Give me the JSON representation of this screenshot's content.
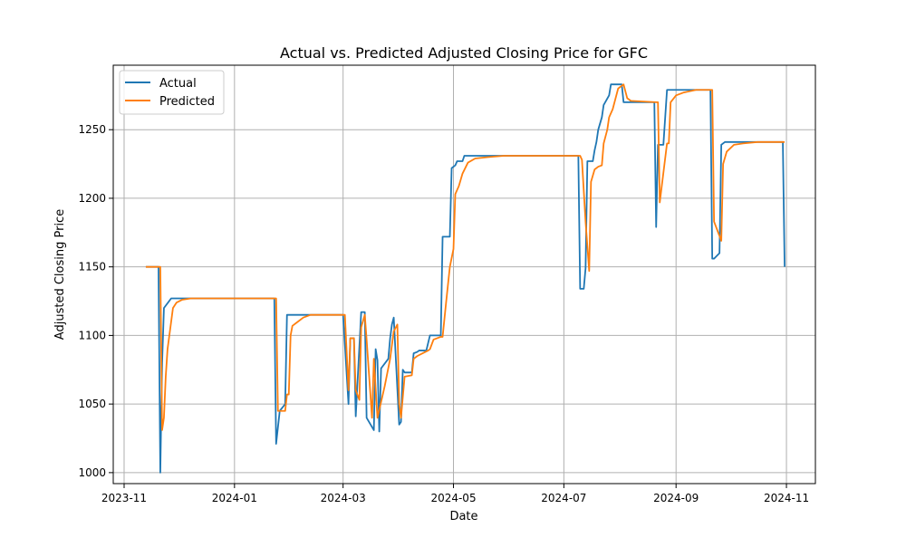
{
  "chart_data": {
    "type": "line",
    "title": "Actual vs. Predicted Adjusted Closing Price for GFC",
    "xlabel": "Date",
    "ylabel": "Adjusted Closing Price",
    "x_tick_labels": [
      "2023-11",
      "2024-01",
      "2024-03",
      "2024-05",
      "2024-07",
      "2024-09",
      "2024-11"
    ],
    "x_tick_dates": [
      "2023-11-01",
      "2024-01-01",
      "2024-03-01",
      "2024-05-01",
      "2024-07-01",
      "2024-09-01",
      "2024-11-01"
    ],
    "y_ticks": [
      1000,
      1050,
      1100,
      1150,
      1200,
      1250
    ],
    "y_tick_labels": [
      "1000",
      "1050",
      "1100",
      "1150",
      "1200",
      "1250"
    ],
    "xlim": [
      "2023-10-26",
      "2024-11-17"
    ],
    "ylim": [
      992,
      1297
    ],
    "grid": true,
    "legend_position": "top-left",
    "series": [
      {
        "name": "Actual",
        "color": "#1f77b4",
        "points": [
          [
            "2023-11-13",
            1150
          ],
          [
            "2023-11-19",
            1150
          ],
          [
            "2023-11-20",
            1150
          ],
          [
            "2023-11-21",
            1000
          ],
          [
            "2023-11-22",
            1080
          ],
          [
            "2023-11-23",
            1120
          ],
          [
            "2023-11-27",
            1127
          ],
          [
            "2024-01-23",
            1127
          ],
          [
            "2024-01-24",
            1021
          ],
          [
            "2024-01-26",
            1045
          ],
          [
            "2024-01-29",
            1050
          ],
          [
            "2024-01-30",
            1115
          ],
          [
            "2024-03-01",
            1115
          ],
          [
            "2024-03-04",
            1050
          ],
          [
            "2024-03-05",
            1098
          ],
          [
            "2024-03-07",
            1098
          ],
          [
            "2024-03-08",
            1041
          ],
          [
            "2024-03-11",
            1117
          ],
          [
            "2024-03-13",
            1117
          ],
          [
            "2024-03-14",
            1040
          ],
          [
            "2024-03-18",
            1031
          ],
          [
            "2024-03-19",
            1090
          ],
          [
            "2024-03-20",
            1082
          ],
          [
            "2024-03-21",
            1030
          ],
          [
            "2024-03-22",
            1076
          ],
          [
            "2024-03-26",
            1083
          ],
          [
            "2024-03-27",
            1098
          ],
          [
            "2024-03-28",
            1108
          ],
          [
            "2024-03-29",
            1113
          ],
          [
            "2024-04-01",
            1035
          ],
          [
            "2024-04-02",
            1037
          ],
          [
            "2024-04-03",
            1075
          ],
          [
            "2024-04-04",
            1073
          ],
          [
            "2024-04-08",
            1073
          ],
          [
            "2024-04-09",
            1087
          ],
          [
            "2024-04-11",
            1088
          ],
          [
            "2024-04-12",
            1089
          ],
          [
            "2024-04-16",
            1089
          ],
          [
            "2024-04-18",
            1100
          ],
          [
            "2024-04-24",
            1100
          ],
          [
            "2024-04-25",
            1172
          ],
          [
            "2024-04-29",
            1172
          ],
          [
            "2024-04-30",
            1222
          ],
          [
            "2024-05-02",
            1224
          ],
          [
            "2024-05-03",
            1227
          ],
          [
            "2024-05-06",
            1227
          ],
          [
            "2024-05-07",
            1231
          ],
          [
            "2024-07-09",
            1231
          ],
          [
            "2024-07-10",
            1134
          ],
          [
            "2024-07-12",
            1134
          ],
          [
            "2024-07-13",
            1149
          ],
          [
            "2024-07-14",
            1227
          ],
          [
            "2024-07-17",
            1227
          ],
          [
            "2024-07-18",
            1235
          ],
          [
            "2024-07-19",
            1241
          ],
          [
            "2024-07-20",
            1250
          ],
          [
            "2024-07-22",
            1259
          ],
          [
            "2024-07-23",
            1268
          ],
          [
            "2024-07-26",
            1275
          ],
          [
            "2024-07-27",
            1283
          ],
          [
            "2024-07-31",
            1283
          ],
          [
            "2024-08-02",
            1283
          ],
          [
            "2024-08-03",
            1270
          ],
          [
            "2024-08-20",
            1270
          ],
          [
            "2024-08-21",
            1179
          ],
          [
            "2024-08-22",
            1239
          ],
          [
            "2024-08-25",
            1239
          ],
          [
            "2024-08-27",
            1279
          ],
          [
            "2024-09-20",
            1279
          ],
          [
            "2024-09-21",
            1156
          ],
          [
            "2024-09-22",
            1156
          ],
          [
            "2024-09-25",
            1160
          ],
          [
            "2024-09-26",
            1239
          ],
          [
            "2024-09-28",
            1241
          ],
          [
            "2024-10-30",
            1241
          ],
          [
            "2024-10-31",
            1150
          ]
        ]
      },
      {
        "name": "Predicted",
        "color": "#ff7f0e",
        "points": [
          [
            "2023-11-13",
            1150
          ],
          [
            "2023-11-20",
            1150
          ],
          [
            "2023-11-21",
            1150
          ],
          [
            "2023-11-22",
            1031
          ],
          [
            "2023-11-23",
            1040
          ],
          [
            "2023-11-24",
            1070
          ],
          [
            "2023-11-25",
            1090
          ],
          [
            "2023-11-27",
            1110
          ],
          [
            "2023-11-28",
            1120
          ],
          [
            "2023-11-30",
            1124
          ],
          [
            "2023-12-03",
            1126
          ],
          [
            "2023-12-08",
            1127
          ],
          [
            "2024-01-24",
            1127
          ],
          [
            "2024-01-25",
            1045
          ],
          [
            "2024-01-29",
            1045
          ],
          [
            "2024-01-30",
            1057
          ],
          [
            "2024-01-31",
            1057
          ],
          [
            "2024-02-01",
            1100
          ],
          [
            "2024-02-02",
            1107
          ],
          [
            "2024-02-04",
            1109
          ],
          [
            "2024-02-08",
            1113
          ],
          [
            "2024-02-12",
            1115
          ],
          [
            "2024-03-01",
            1115
          ],
          [
            "2024-03-02",
            1115
          ],
          [
            "2024-03-04",
            1060
          ],
          [
            "2024-03-05",
            1098
          ],
          [
            "2024-03-07",
            1098
          ],
          [
            "2024-03-08",
            1060
          ],
          [
            "2024-03-10",
            1053
          ],
          [
            "2024-03-11",
            1106
          ],
          [
            "2024-03-13",
            1115
          ],
          [
            "2024-03-14",
            1097
          ],
          [
            "2024-03-17",
            1040
          ],
          [
            "2024-03-18",
            1083
          ],
          [
            "2024-03-20",
            1040
          ],
          [
            "2024-03-24",
            1063
          ],
          [
            "2024-03-27",
            1083
          ],
          [
            "2024-03-29",
            1103
          ],
          [
            "2024-03-31",
            1108
          ],
          [
            "2024-04-01",
            1050
          ],
          [
            "2024-04-02",
            1040
          ],
          [
            "2024-04-04",
            1070
          ],
          [
            "2024-04-08",
            1071
          ],
          [
            "2024-04-09",
            1083
          ],
          [
            "2024-04-11",
            1085
          ],
          [
            "2024-04-14",
            1087
          ],
          [
            "2024-04-17",
            1089
          ],
          [
            "2024-04-18",
            1090
          ],
          [
            "2024-04-20",
            1097
          ],
          [
            "2024-04-24",
            1099
          ],
          [
            "2024-04-25",
            1099
          ],
          [
            "2024-04-27",
            1125
          ],
          [
            "2024-04-29",
            1150
          ],
          [
            "2024-05-01",
            1163
          ],
          [
            "2024-05-02",
            1203
          ],
          [
            "2024-05-04",
            1209
          ],
          [
            "2024-05-06",
            1218
          ],
          [
            "2024-05-09",
            1226
          ],
          [
            "2024-05-13",
            1229
          ],
          [
            "2024-05-20",
            1230
          ],
          [
            "2024-05-29",
            1231
          ],
          [
            "2024-07-10",
            1231
          ],
          [
            "2024-07-11",
            1228
          ],
          [
            "2024-07-13",
            1183
          ],
          [
            "2024-07-15",
            1147
          ],
          [
            "2024-07-16",
            1212
          ],
          [
            "2024-07-18",
            1221
          ],
          [
            "2024-07-20",
            1223
          ],
          [
            "2024-07-22",
            1224
          ],
          [
            "2024-07-23",
            1240
          ],
          [
            "2024-07-25",
            1250
          ],
          [
            "2024-07-26",
            1259
          ],
          [
            "2024-07-28",
            1265
          ],
          [
            "2024-07-31",
            1280
          ],
          [
            "2024-08-02",
            1282
          ],
          [
            "2024-08-03",
            1283
          ],
          [
            "2024-08-05",
            1273
          ],
          [
            "2024-08-07",
            1271
          ],
          [
            "2024-08-21",
            1270
          ],
          [
            "2024-08-22",
            1270
          ],
          [
            "2024-08-23",
            1197
          ],
          [
            "2024-08-27",
            1240
          ],
          [
            "2024-08-28",
            1240
          ],
          [
            "2024-08-29",
            1270
          ],
          [
            "2024-09-01",
            1275
          ],
          [
            "2024-09-05",
            1277
          ],
          [
            "2024-09-12",
            1279
          ],
          [
            "2024-09-21",
            1279
          ],
          [
            "2024-09-22",
            1183
          ],
          [
            "2024-09-26",
            1169
          ],
          [
            "2024-09-27",
            1225
          ],
          [
            "2024-09-29",
            1234
          ],
          [
            "2024-10-03",
            1239
          ],
          [
            "2024-10-08",
            1240
          ],
          [
            "2024-10-16",
            1241
          ],
          [
            "2024-10-31",
            1241
          ]
        ]
      }
    ]
  }
}
